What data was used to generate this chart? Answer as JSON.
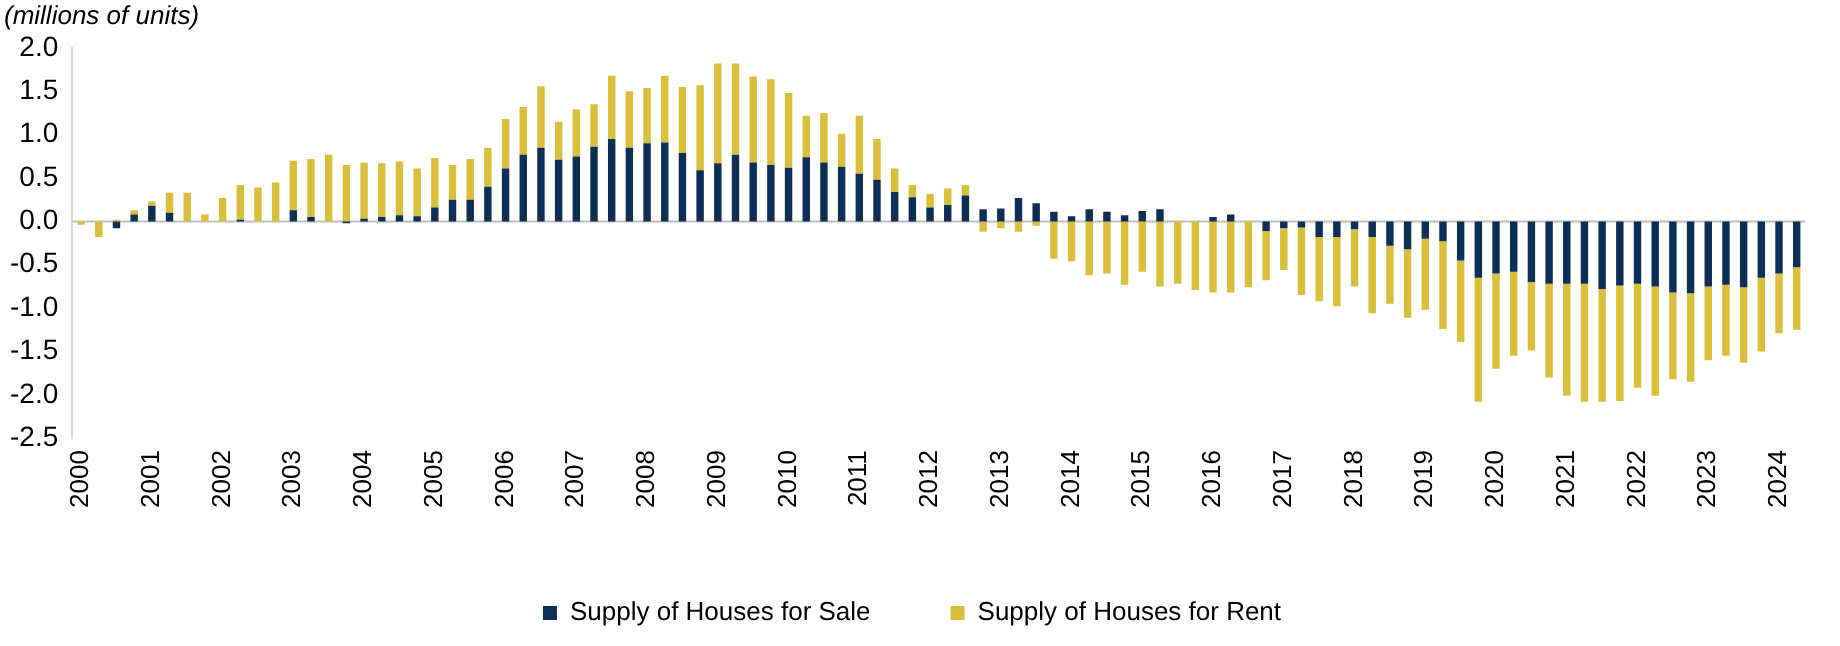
{
  "chart_data": {
    "type": "bar",
    "stacked": true,
    "ylabel": "(millions of units)",
    "categories": [
      "2000",
      null,
      null,
      null,
      "2001",
      null,
      null,
      null,
      "2002",
      null,
      null,
      null,
      "2003",
      null,
      null,
      null,
      "2004",
      null,
      null,
      null,
      "2005",
      null,
      null,
      null,
      "2006",
      null,
      null,
      null,
      "2007",
      null,
      null,
      null,
      "2008",
      null,
      null,
      null,
      "2009",
      null,
      null,
      null,
      "2010",
      null,
      null,
      null,
      "2011",
      null,
      null,
      null,
      "2012",
      null,
      null,
      null,
      "2013",
      null,
      null,
      null,
      "2014",
      null,
      null,
      null,
      "2015",
      null,
      null,
      null,
      "2016",
      null,
      null,
      null,
      "2017",
      null,
      null,
      null,
      "2018",
      null,
      null,
      null,
      "2019",
      null,
      null,
      null,
      "2020",
      null,
      null,
      null,
      "2021",
      null,
      null,
      null,
      "2022",
      null,
      null,
      null,
      "2023",
      null,
      null,
      null,
      "2024",
      null
    ],
    "series": [
      {
        "name": "Supply of Houses for Sale",
        "color": "#0d2f55",
        "values": [
          0,
          0,
          -0.08,
          0.08,
          0.18,
          0.1,
          0,
          0,
          0,
          0.02,
          0,
          0,
          0.13,
          0.05,
          0,
          -0.02,
          0.03,
          0.05,
          0.07,
          0.06,
          0.16,
          0.25,
          0.25,
          0.4,
          0.61,
          0.77,
          0.85,
          0.71,
          0.75,
          0.86,
          0.95,
          0.85,
          0.9,
          0.91,
          0.79,
          0.59,
          0.67,
          0.77,
          0.68,
          0.65,
          0.62,
          0.74,
          0.68,
          0.63,
          0.55,
          0.48,
          0.34,
          0.28,
          0.16,
          0.19,
          0.3,
          0.14,
          0.15,
          0.27,
          0.21,
          0.11,
          0.06,
          0.14,
          0.11,
          0.07,
          0.12,
          0.14,
          0,
          0,
          0.05,
          0.08,
          0,
          -0.11,
          -0.08,
          -0.07,
          -0.18,
          -0.18,
          -0.09,
          -0.18,
          -0.28,
          -0.32,
          -0.2,
          -0.23,
          -0.45,
          -0.65,
          -0.6,
          -0.58,
          -0.7,
          -0.72,
          -0.72,
          -0.72,
          -0.78,
          -0.74,
          -0.72,
          -0.75,
          -0.82,
          -0.83,
          -0.75,
          -0.73,
          -0.76,
          -0.65,
          -0.6,
          -0.53
        ]
      },
      {
        "name": "Supply of Houses for Rent",
        "color": "#d9bf3c",
        "values": [
          -0.04,
          -0.18,
          0.02,
          0.05,
          0.05,
          0.23,
          0.33,
          0.08,
          0.27,
          0.4,
          0.39,
          0.45,
          0.57,
          0.67,
          0.77,
          0.65,
          0.65,
          0.62,
          0.62,
          0.55,
          0.57,
          0.4,
          0.47,
          0.45,
          0.57,
          0.55,
          0.71,
          0.44,
          0.54,
          0.49,
          0.73,
          0.65,
          0.64,
          0.77,
          0.76,
          0.98,
          1.15,
          1.05,
          0.99,
          0.99,
          0.86,
          0.48,
          0.57,
          0.38,
          0.67,
          0.47,
          0.27,
          0.14,
          0.16,
          0.19,
          0.12,
          -0.12,
          -0.08,
          -0.12,
          -0.05,
          -0.43,
          -0.46,
          -0.62,
          -0.6,
          -0.73,
          -0.58,
          -0.75,
          -0.72,
          -0.79,
          -0.82,
          -0.82,
          -0.76,
          -0.57,
          -0.48,
          -0.78,
          -0.74,
          -0.8,
          -0.66,
          -0.88,
          -0.67,
          -0.79,
          -0.82,
          -1.01,
          -0.94,
          -1.43,
          -1.1,
          -0.97,
          -0.79,
          -1.08,
          -1.29,
          -1.36,
          -1.3,
          -1.33,
          -1.2,
          -1.26,
          -1.0,
          -1.02,
          -0.85,
          -0.82,
          -0.87,
          -0.85,
          -0.69,
          -0.72
        ]
      }
    ],
    "ylim": [
      -2.5,
      2.0
    ],
    "yticks": [
      {
        "value": 2,
        "label": "2.0"
      },
      {
        "value": 1.5,
        "label": "1.5"
      },
      {
        "value": 1,
        "label": "1.0"
      },
      {
        "value": 0.5,
        "label": "0.5"
      },
      {
        "value": 0,
        "label": "0.0"
      },
      {
        "value": -0.5,
        "label": "-0.5"
      },
      {
        "value": -1,
        "label": "-1.0"
      },
      {
        "value": -1.5,
        "label": "-1.5"
      },
      {
        "value": -2,
        "label": "-2.0"
      },
      {
        "value": -2.5,
        "label": "-2.5"
      }
    ],
    "ref_lines": [
      {
        "axis": "y",
        "value": 0,
        "color": "#bfbfbf"
      }
    ],
    "grid": false,
    "legend": "bottom"
  }
}
